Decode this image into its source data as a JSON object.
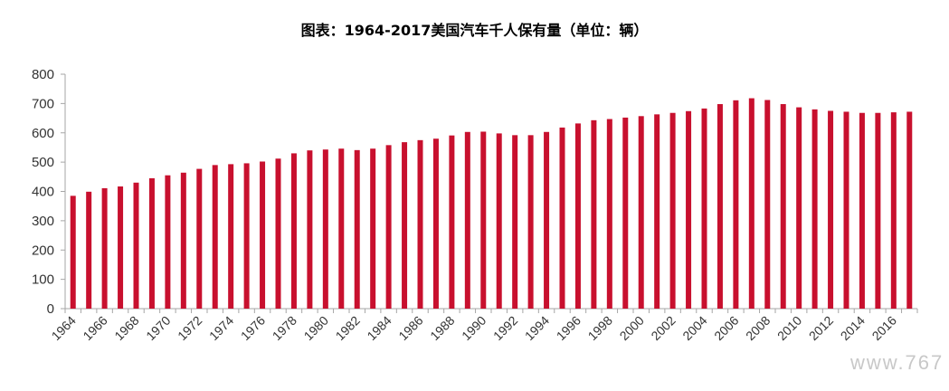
{
  "title": "图表：1964-2017美国汽车千人保有量（单位：辆）",
  "watermark": "www.767",
  "colors": {
    "bar": "#c8102e",
    "axis": "#a6a6a6",
    "text": "#333333"
  },
  "chart_data": {
    "type": "bar",
    "title": "图表：1964-2017美国汽车千人保有量（单位：辆）",
    "xlabel": "",
    "ylabel": "",
    "ylim": [
      0,
      800
    ],
    "yticks": [
      0,
      100,
      200,
      300,
      400,
      500,
      600,
      700,
      800
    ],
    "grid": false,
    "categories": [
      "1964",
      "1965",
      "1966",
      "1967",
      "1968",
      "1969",
      "1970",
      "1971",
      "1972",
      "1973",
      "1974",
      "1975",
      "1976",
      "1977",
      "1978",
      "1979",
      "1980",
      "1981",
      "1982",
      "1983",
      "1984",
      "1985",
      "1986",
      "1987",
      "1988",
      "1989",
      "1990",
      "1991",
      "1992",
      "1993",
      "1994",
      "1995",
      "1996",
      "1997",
      "1998",
      "1999",
      "2000",
      "2001",
      "2002",
      "2003",
      "2004",
      "2005",
      "2006",
      "2007",
      "2008",
      "2009",
      "2010",
      "2011",
      "2012",
      "2013",
      "2014",
      "2015",
      "2016",
      "2017"
    ],
    "xtick_labels": [
      "1964",
      "1966",
      "1968",
      "1970",
      "1972",
      "1974",
      "1976",
      "1978",
      "1980",
      "1982",
      "1984",
      "1986",
      "1988",
      "1990",
      "1992",
      "1994",
      "1996",
      "1998",
      "2000",
      "2002",
      "2004",
      "2006",
      "2008",
      "2010",
      "2012",
      "2014",
      "2016"
    ],
    "values": [
      385,
      399,
      411,
      417,
      430,
      445,
      455,
      464,
      477,
      490,
      493,
      496,
      502,
      512,
      530,
      540,
      543,
      546,
      541,
      546,
      558,
      568,
      575,
      580,
      591,
      603,
      604,
      598,
      592,
      592,
      603,
      618,
      632,
      643,
      647,
      652,
      657,
      663,
      668,
      674,
      683,
      698,
      711,
      718,
      712,
      698,
      687,
      680,
      675,
      672,
      668,
      668,
      670,
      672
    ]
  }
}
